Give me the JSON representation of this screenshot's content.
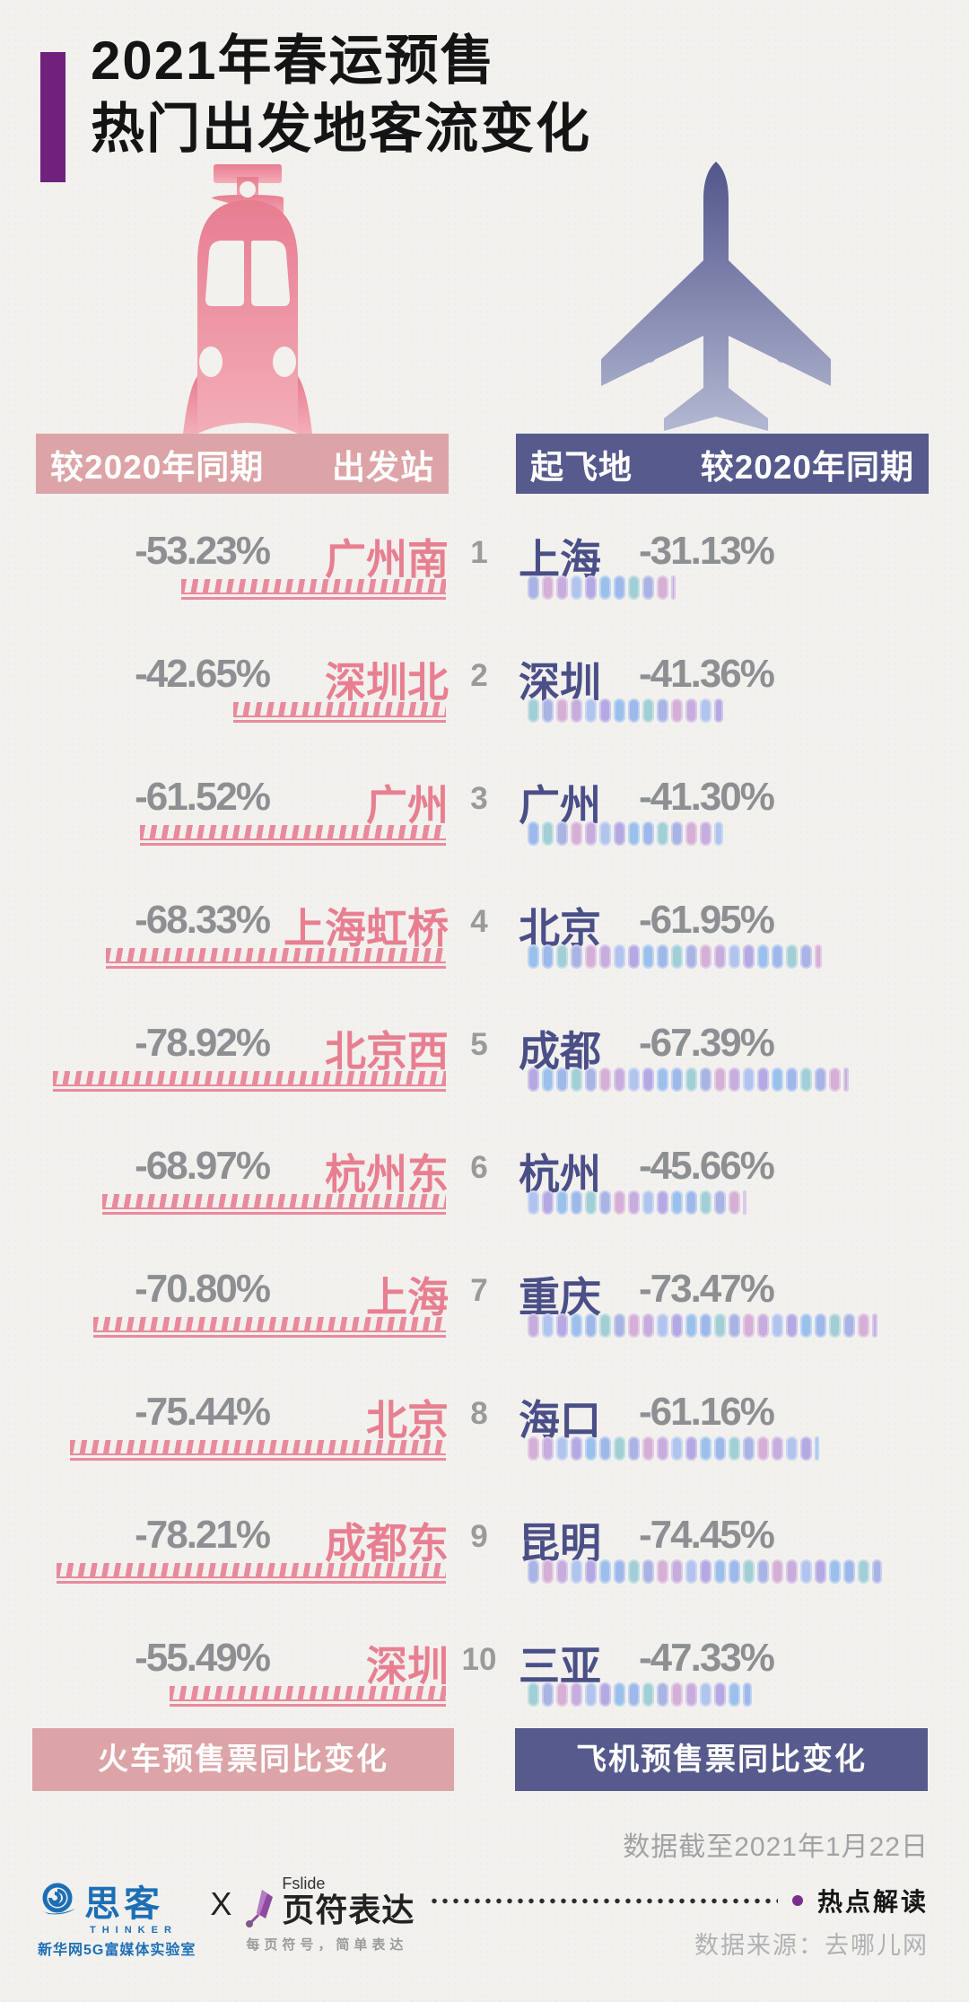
{
  "title": {
    "line1": "2021年春运预售",
    "line2": "热门出发地客流变化"
  },
  "columns": {
    "train": {
      "period_label": "较2020年同期",
      "place_label": "出发站",
      "footer_label": "火车预售票同比变化"
    },
    "flight": {
      "place_label": "起飞地",
      "period_label": "较2020年同期",
      "footer_label": "飞机预售票同比变化"
    }
  },
  "rows": [
    {
      "rank": "1",
      "train_pct": "-53.23%",
      "train_value": -53.23,
      "station": "广州南",
      "city": "上海",
      "flight_pct": "-31.13%",
      "flight_value": -31.13
    },
    {
      "rank": "2",
      "train_pct": "-42.65%",
      "train_value": -42.65,
      "station": "深圳北",
      "city": "深圳",
      "flight_pct": "-41.36%",
      "flight_value": -41.36
    },
    {
      "rank": "3",
      "train_pct": "-61.52%",
      "train_value": -61.52,
      "station": "广州",
      "city": "广州",
      "flight_pct": "-41.30%",
      "flight_value": -41.3
    },
    {
      "rank": "4",
      "train_pct": "-68.33%",
      "train_value": -68.33,
      "station": "上海虹桥",
      "city": "北京",
      "flight_pct": "-61.95%",
      "flight_value": -61.95
    },
    {
      "rank": "5",
      "train_pct": "-78.92%",
      "train_value": -78.92,
      "station": "北京西",
      "city": "成都",
      "flight_pct": "-67.39%",
      "flight_value": -67.39
    },
    {
      "rank": "6",
      "train_pct": "-68.97%",
      "train_value": -68.97,
      "station": "杭州东",
      "city": "杭州",
      "flight_pct": "-45.66%",
      "flight_value": -45.66
    },
    {
      "rank": "7",
      "train_pct": "-70.80%",
      "train_value": -70.8,
      "station": "上海",
      "city": "重庆",
      "flight_pct": "-73.47%",
      "flight_value": -73.47
    },
    {
      "rank": "8",
      "train_pct": "-75.44%",
      "train_value": -75.44,
      "station": "北京",
      "city": "海口",
      "flight_pct": "-61.16%",
      "flight_value": -61.16
    },
    {
      "rank": "9",
      "train_pct": "-78.21%",
      "train_value": -78.21,
      "station": "成都东",
      "city": "昆明",
      "flight_pct": "-74.45%",
      "flight_value": -74.45
    },
    {
      "rank": "10",
      "train_pct": "-55.49%",
      "train_value": -55.49,
      "station": "深圳",
      "city": "三亚",
      "flight_pct": "-47.33%",
      "flight_value": -47.33
    }
  ],
  "data_note": "数据截至2021年1月22日",
  "credits": {
    "thinker_name": "思客",
    "thinker_sub": "THINKER",
    "thinker_org": "新华网5G富媒体实验室",
    "separator": "X",
    "fslide_en": "Fslide",
    "fslide_cn": "页符表达",
    "fslide_tagline": "每页符号，简单表达",
    "section_label": "热点解读",
    "source": "数据来源：去哪儿网"
  },
  "colors": {
    "accent_purple": "#70217e",
    "train_pink": "#e8839a",
    "train_bar": "#dca4a7",
    "track_pink": "#e98a9c",
    "flight_purple": "#565a8c",
    "city_text": "#4b4f87",
    "pct_gray": "#8d8f92",
    "dot_palette": [
      "#a9b3e4",
      "#9cc0ec",
      "#c6addd",
      "#a2cfd6",
      "#b4a9e2",
      "#d6afd6",
      "#9eb8ea",
      "#b0c4ee"
    ]
  },
  "chart_data": [
    {
      "type": "bar",
      "title": "火车预售票同比变化",
      "subtitle": "较2020年同期",
      "categories": [
        "广州南",
        "深圳北",
        "广州",
        "上海虹桥",
        "北京西",
        "杭州东",
        "上海",
        "北京",
        "成都东",
        "深圳"
      ],
      "values": [
        -53.23,
        -42.65,
        -61.52,
        -68.33,
        -78.92,
        -68.97,
        -70.8,
        -75.44,
        -78.21,
        -55.49
      ],
      "unit": "%",
      "xlabel": "出发站",
      "ylabel": "较2020年同期",
      "legend": false,
      "grid": false
    },
    {
      "type": "bar",
      "title": "飞机预售票同比变化",
      "subtitle": "较2020年同期",
      "categories": [
        "上海",
        "深圳",
        "广州",
        "北京",
        "成都",
        "杭州",
        "重庆",
        "海口",
        "昆明",
        "三亚"
      ],
      "values": [
        -31.13,
        -41.36,
        -41.3,
        -61.95,
        -67.39,
        -45.66,
        -73.47,
        -61.16,
        -74.45,
        -47.33
      ],
      "unit": "%",
      "xlabel": "起飞地",
      "ylabel": "较2020年同期",
      "legend": false,
      "grid": false
    }
  ]
}
